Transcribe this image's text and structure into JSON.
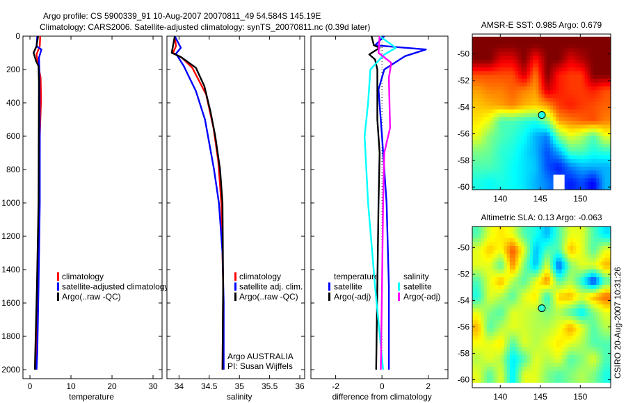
{
  "title": {
    "line1": "Argo profile: CS 5900339_91 10-Aug-2007 20070811_49 54.584S 145.19E",
    "line2": "Climatology: CARS2006. Satellite-adjusted climatology: synTS_20070811.nc (0.39d later)"
  },
  "footer_stamp": "CSIRO 20-Aug-2007 10:31:26",
  "colors": {
    "red": "#ff0000",
    "blue": "#0000ff",
    "black": "#000000",
    "cyan": "#00ffff",
    "magenta": "#ff00ff"
  },
  "chart_data": [
    {
      "type": "line",
      "id": "temperature",
      "xlabel": "temperature",
      "xlim": [
        -1.7,
        32.2
      ],
      "ylim": [
        0,
        2054
      ],
      "yreversed": true,
      "xticks": [
        0,
        10,
        20,
        30
      ],
      "yticks": [
        0,
        200,
        400,
        600,
        800,
        1000,
        1200,
        1400,
        1600,
        1800,
        2000
      ],
      "legend": [
        "climatology",
        "satellite-adjusted climatology",
        "Argo(..raw -QC)"
      ],
      "series": [
        {
          "name": "climatology",
          "color": "#ff0000",
          "points": [
            [
              2.5,
              0
            ],
            [
              2.4,
              60
            ],
            [
              1.6,
              110
            ],
            [
              2.0,
              170
            ],
            [
              2.6,
              250
            ],
            [
              2.7,
              380
            ],
            [
              2.4,
              600
            ],
            [
              2.2,
              1000
            ],
            [
              1.9,
              1500
            ],
            [
              1.5,
              1900
            ],
            [
              1.3,
              2000
            ]
          ]
        },
        {
          "name": "satellite-adjusted climatology",
          "color": "#0000ff",
          "points": [
            [
              1.8,
              0
            ],
            [
              1.6,
              60
            ],
            [
              2.8,
              80
            ],
            [
              2.2,
              130
            ],
            [
              2.3,
              200
            ],
            [
              2.4,
              600
            ],
            [
              2.4,
              1000
            ],
            [
              2.1,
              1500
            ],
            [
              1.8,
              1900
            ],
            [
              1.6,
              2000
            ]
          ]
        },
        {
          "name": "Argo(..raw -QC)",
          "color": "#000000",
          "points": [
            [
              2.0,
              0
            ],
            [
              1.6,
              60
            ],
            [
              0.9,
              100
            ],
            [
              1.5,
              150
            ],
            [
              2.1,
              180
            ],
            [
              2.2,
              280
            ],
            [
              2.1,
              1000
            ],
            [
              1.7,
              1500
            ],
            [
              1.3,
              1900
            ],
            [
              1.2,
              2000
            ]
          ]
        }
      ]
    },
    {
      "type": "line",
      "id": "salinity",
      "xlabel": "salinity",
      "xlim": [
        33.8,
        36.08
      ],
      "ylim": [
        0,
        2054
      ],
      "yreversed": true,
      "xticks": [
        34,
        34.5,
        35,
        35.5,
        36
      ],
      "legend": [
        "climatology",
        "satellite adj. clim.",
        "Argo(..raw -QC)"
      ],
      "annotation": [
        "Argo AUSTRALIA",
        "PI: Susan Wijffels"
      ],
      "series": [
        {
          "name": "climatology",
          "color": "#ff0000",
          "points": [
            [
              33.93,
              0
            ],
            [
              33.95,
              60
            ],
            [
              33.9,
              100
            ],
            [
              34.05,
              130
            ],
            [
              34.22,
              190
            ],
            [
              34.45,
              350
            ],
            [
              34.57,
              550
            ],
            [
              34.65,
              750
            ],
            [
              34.7,
              1000
            ],
            [
              34.73,
              1500
            ],
            [
              34.72,
              2000
            ]
          ]
        },
        {
          "name": "satellite adj. clim.",
          "color": "#0000ff",
          "points": [
            [
              33.93,
              0
            ],
            [
              34.03,
              70
            ],
            [
              33.95,
              105
            ],
            [
              34.08,
              180
            ],
            [
              34.28,
              330
            ],
            [
              34.43,
              500
            ],
            [
              34.58,
              800
            ],
            [
              34.66,
              1000
            ],
            [
              34.72,
              1300
            ],
            [
              34.74,
              1600
            ],
            [
              34.74,
              2000
            ]
          ]
        },
        {
          "name": "Argo(..raw -QC)",
          "color": "#000000",
          "points": [
            [
              33.93,
              0
            ],
            [
              33.88,
              100
            ],
            [
              34.03,
              125
            ],
            [
              34.28,
              190
            ],
            [
              34.42,
              300
            ],
            [
              34.52,
              450
            ],
            [
              34.6,
              600
            ],
            [
              34.68,
              800
            ],
            [
              34.72,
              1000
            ],
            [
              34.73,
              1500
            ],
            [
              34.72,
              2000
            ]
          ]
        }
      ]
    },
    {
      "type": "line",
      "id": "difference",
      "xlabel": "difference from climatology",
      "xlim": [
        -3.07,
        2.85
      ],
      "ylim": [
        0,
        2054
      ],
      "yreversed": true,
      "xticks": [
        -2,
        0,
        2
      ],
      "legend_temperature": {
        "heading": "temperature",
        "items": [
          "satellite",
          "Argo(-adj)"
        ]
      },
      "legend_salinity": {
        "heading": "salinity",
        "items": [
          "satellite",
          "Argo(-adj)"
        ]
      },
      "series": [
        {
          "name": "temperature satellite",
          "color": "#0000ff",
          "points": [
            [
              0.1,
              0
            ],
            [
              -0.3,
              55
            ],
            [
              1.9,
              80
            ],
            [
              1.0,
              120
            ],
            [
              0.1,
              200
            ],
            [
              -0.15,
              320
            ],
            [
              0.0,
              600
            ],
            [
              0.1,
              800
            ],
            [
              0.2,
              1000
            ],
            [
              0.3,
              1500
            ],
            [
              0.3,
              2000
            ]
          ]
        },
        {
          "name": "temperature Argo(-adj)",
          "color": "#000000",
          "points": [
            [
              -0.45,
              0
            ],
            [
              -0.35,
              55
            ],
            [
              -0.1,
              70
            ],
            [
              -0.55,
              110
            ],
            [
              -0.3,
              140
            ],
            [
              -0.2,
              200
            ],
            [
              -0.2,
              500
            ],
            [
              -0.1,
              700
            ],
            [
              -0.15,
              1000
            ],
            [
              -0.2,
              1500
            ],
            [
              -0.25,
              2000
            ]
          ]
        },
        {
          "name": "salinity satellite",
          "color": "#00ffff",
          "points": [
            [
              -0.1,
              0
            ],
            [
              0.2,
              30
            ],
            [
              0.6,
              70
            ],
            [
              0.1,
              110
            ],
            [
              -0.5,
              200
            ],
            [
              -0.6,
              400
            ],
            [
              -0.75,
              600
            ],
            [
              -0.6,
              1000
            ],
            [
              -0.3,
              1500
            ],
            [
              0.05,
              2000
            ]
          ]
        },
        {
          "name": "salinity Argo(-adj)",
          "color": "#ff00ff",
          "points": [
            [
              -0.1,
              0
            ],
            [
              -0.15,
              100
            ],
            [
              0.4,
              160
            ],
            [
              0.3,
              250
            ],
            [
              0.35,
              550
            ],
            [
              0.1,
              700
            ],
            [
              0.05,
              1000
            ],
            [
              0.0,
              1500
            ],
            [
              -0.05,
              2000
            ]
          ]
        }
      ]
    },
    {
      "type": "heatmap",
      "id": "sst",
      "title": "AMSR-E SST: 0.985 Argo: 0.679",
      "xlim": [
        136.5,
        153.8
      ],
      "ylim": [
        -60.2,
        -48.5
      ],
      "data_lat_range": [
        -60.2,
        -48.7
      ],
      "xticks": [
        140,
        145,
        150
      ],
      "yticks": [
        -50,
        -52,
        -54,
        -56,
        -58,
        -60
      ],
      "marker": [
        145.19,
        -54.584
      ],
      "grid": [
        [
          1,
          1,
          1,
          1,
          1,
          1,
          1,
          1,
          1,
          1,
          1,
          1
        ],
        [
          1,
          1,
          0.9,
          0.9,
          1,
          0.85,
          1,
          1,
          0.9,
          0.95,
          1,
          1
        ],
        [
          0.8,
          0.8,
          0.8,
          0.8,
          0.92,
          0.75,
          1,
          0.85,
          0.82,
          0.82,
          1,
          1
        ],
        [
          0.72,
          0.75,
          0.75,
          0.78,
          0.75,
          0.72,
          0.92,
          0.85,
          0.82,
          0.82,
          0.85,
          0.8
        ],
        [
          0.68,
          0.7,
          0.72,
          0.75,
          0.7,
          0.68,
          0.72,
          0.82,
          0.85,
          0.82,
          0.8,
          0.78
        ],
        [
          0.65,
          0.6,
          0.45,
          0.45,
          0.42,
          0.4,
          0.5,
          0.72,
          0.75,
          0.78,
          0.8,
          0.75
        ],
        [
          0.6,
          0.5,
          0.45,
          0.42,
          0.38,
          0.3,
          0.25,
          0.5,
          0.6,
          0.55,
          0.45,
          0.6
        ],
        [
          0.5,
          0.48,
          0.42,
          0.4,
          0.35,
          0.3,
          0.2,
          0.3,
          0.45,
          0.45,
          0.4,
          0.42
        ],
        [
          0.45,
          0.45,
          0.42,
          0.38,
          0.35,
          0.32,
          0.2,
          0.15,
          0.25,
          0.3,
          0.3,
          0.3
        ],
        [
          0.4,
          0.38,
          0.4,
          0.38,
          0.35,
          0.3,
          0.25,
          null,
          0.15,
          0.2,
          0.12,
          0.3
        ]
      ]
    },
    {
      "type": "heatmap",
      "id": "sla",
      "title": "Altimetric SLA: 0.13 Argo: -0.063",
      "xlim": [
        136.5,
        153.8
      ],
      "ylim": [
        -60.6,
        -48.4
      ],
      "data_lat_range": [
        -60.2,
        -48.4
      ],
      "xticks": [
        140,
        145,
        150
      ],
      "yticks": [
        -50,
        -52,
        -54,
        -56,
        -58,
        -60
      ],
      "marker": [
        145.19,
        -54.584
      ],
      "grid": [
        [
          0.45,
          0.6,
          0.65,
          0.6,
          0.45,
          0.4,
          0.3,
          0.45,
          0.6,
          0.6,
          0.45,
          0.35
        ],
        [
          0.6,
          0.68,
          0.62,
          0.8,
          0.6,
          0.3,
          0.45,
          0.45,
          0.7,
          0.6,
          0.45,
          0.6
        ],
        [
          0.6,
          0.6,
          0.45,
          0.75,
          0.5,
          0.3,
          0.6,
          0.2,
          0.5,
          0.6,
          0.6,
          0.7
        ],
        [
          0.45,
          0.6,
          0.7,
          0.55,
          0.45,
          0.6,
          0.75,
          0.45,
          0.55,
          0.4,
          0.15,
          0.45
        ],
        [
          0.4,
          0.6,
          0.55,
          0.45,
          0.6,
          0.65,
          0.4,
          0.68,
          0.7,
          0.6,
          0.7,
          0.78
        ],
        [
          0.6,
          0.5,
          0.45,
          0.6,
          0.58,
          0.55,
          0.5,
          0.55,
          0.45,
          0.35,
          0.5,
          0.6
        ],
        [
          0.7,
          0.45,
          0.55,
          0.6,
          0.58,
          0.55,
          0.55,
          0.6,
          0.72,
          0.6,
          0.45,
          0.55
        ],
        [
          0.62,
          0.6,
          0.65,
          0.45,
          0.6,
          0.55,
          0.6,
          0.65,
          0.6,
          0.55,
          0.45,
          0.45
        ],
        [
          0.55,
          0.6,
          0.55,
          0.35,
          0.45,
          0.6,
          0.55,
          0.6,
          0.45,
          0.5,
          0.6,
          0.45
        ],
        [
          0.6,
          0.45,
          0.6,
          0.35,
          0.6,
          0.6,
          0.5,
          0.45,
          0.5,
          0.55,
          0.5,
          0.4
        ]
      ]
    }
  ]
}
